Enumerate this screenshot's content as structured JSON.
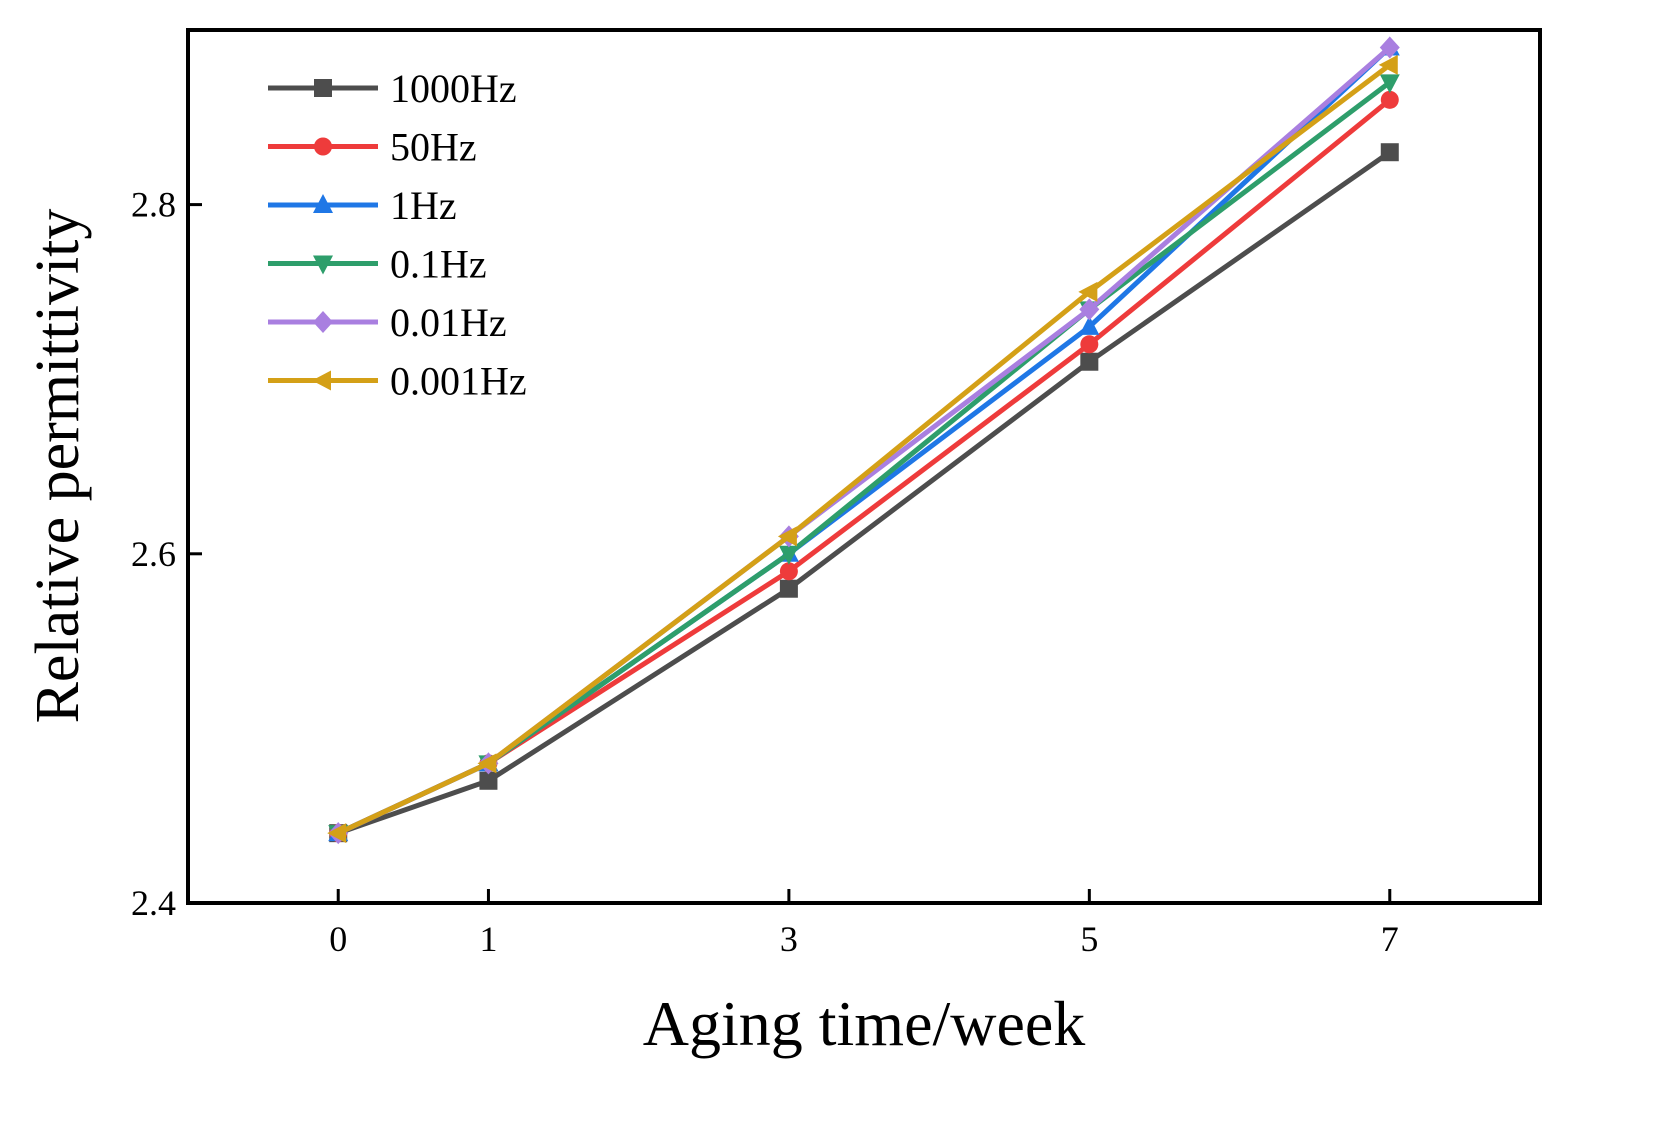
{
  "chart_data": {
    "type": "line",
    "title": "",
    "xlabel": "Aging time/week",
    "ylabel": "Relative permittivity",
    "x": [
      0,
      1,
      3,
      5,
      7
    ],
    "x_tick_labels": [
      "0",
      "1",
      "3",
      "5",
      "7"
    ],
    "xlim": [
      -1,
      8
    ],
    "ylim": [
      2.4,
      2.9
    ],
    "y_ticks": [
      2.4,
      2.6,
      2.8
    ],
    "y_tick_labels": [
      "2.4",
      "2.6",
      "2.8"
    ],
    "grid": false,
    "legend_position": "top-left",
    "series": [
      {
        "name": "1000Hz",
        "color": "#4d4d4d",
        "marker": "square",
        "values": [
          2.44,
          2.47,
          2.58,
          2.71,
          2.83
        ]
      },
      {
        "name": "50Hz",
        "color": "#ee3b3b",
        "marker": "circle",
        "values": [
          2.44,
          2.48,
          2.59,
          2.72,
          2.86
        ]
      },
      {
        "name": "1Hz",
        "color": "#1f77e6",
        "marker": "triangle-up",
        "values": [
          2.44,
          2.48,
          2.6,
          2.73,
          2.89
        ]
      },
      {
        "name": "0.1Hz",
        "color": "#2e9e6b",
        "marker": "triangle-down",
        "values": [
          2.44,
          2.48,
          2.6,
          2.74,
          2.87
        ]
      },
      {
        "name": "0.01Hz",
        "color": "#a97fe0",
        "marker": "diamond",
        "values": [
          2.44,
          2.48,
          2.61,
          2.74,
          2.89
        ]
      },
      {
        "name": "0.001Hz",
        "color": "#d4a017",
        "marker": "triangle-left",
        "values": [
          2.44,
          2.48,
          2.61,
          2.75,
          2.88
        ]
      }
    ]
  }
}
